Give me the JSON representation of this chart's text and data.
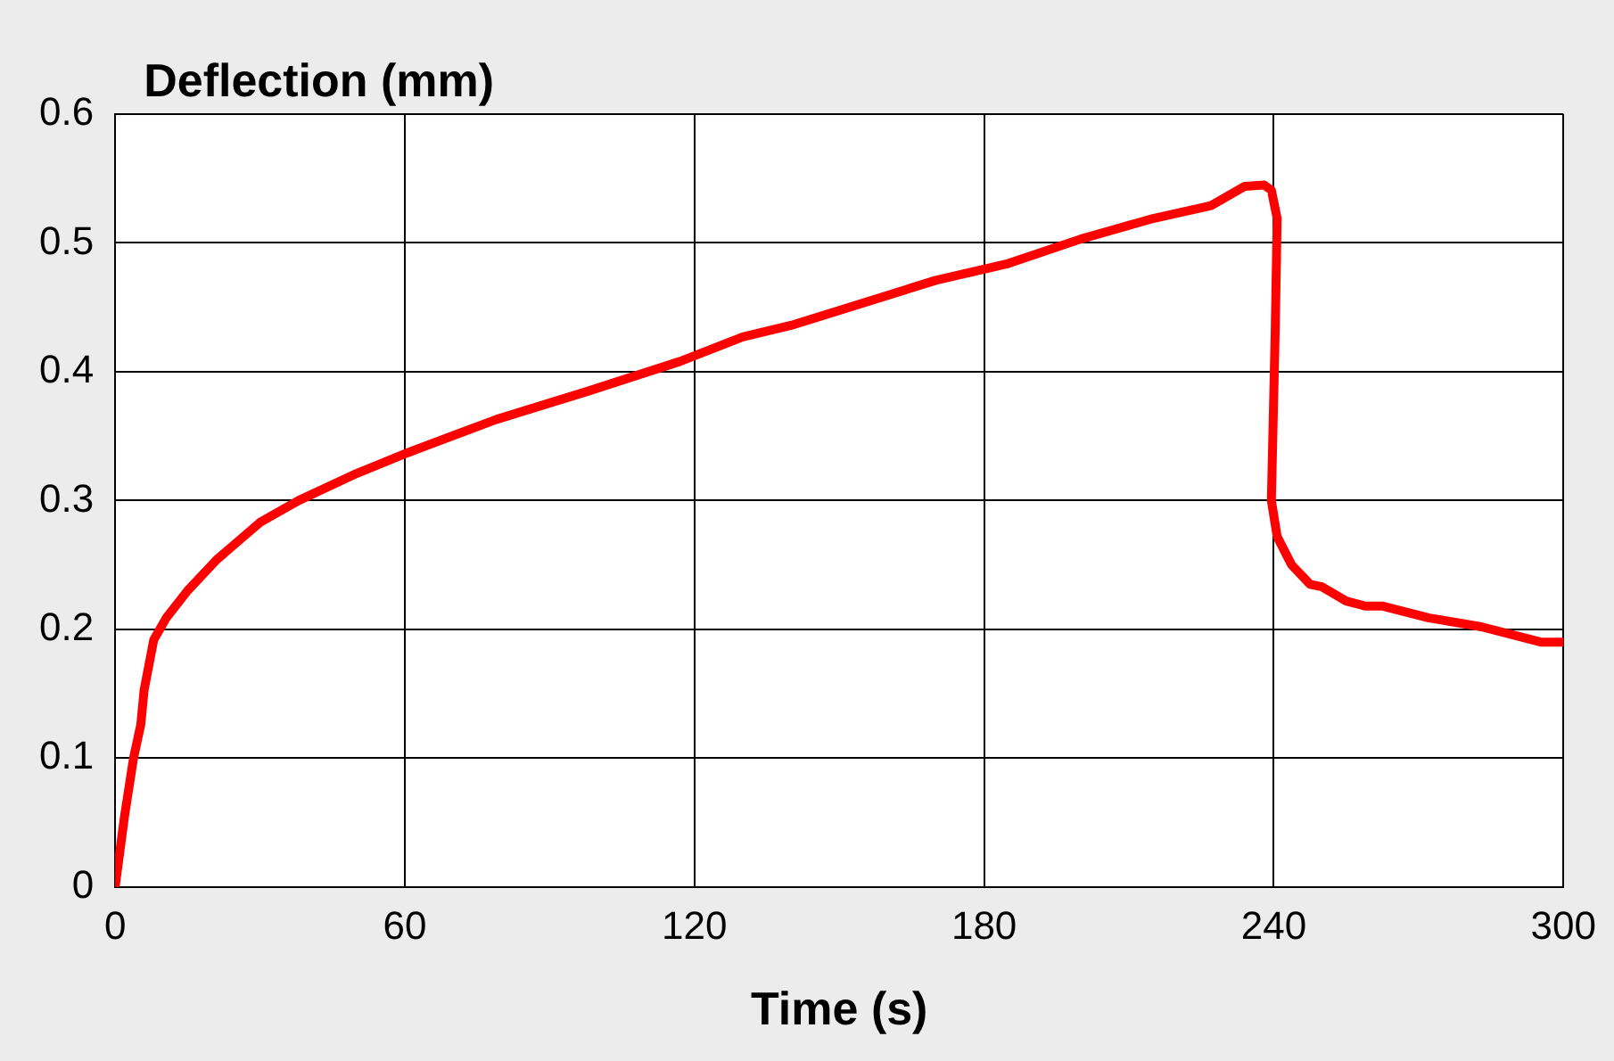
{
  "chart_data": {
    "type": "line",
    "xlabel": "Time (s)",
    "ylabel": "Deflection (mm)",
    "xlim": [
      0,
      300
    ],
    "xticks": [
      0,
      60,
      120,
      180,
      240,
      300
    ],
    "ylim": [
      0,
      0.6
    ],
    "yticks": [
      0,
      0.1,
      0.2,
      0.3,
      0.4,
      0.5,
      0.6
    ],
    "grid": true,
    "legend": false,
    "marker": "none",
    "line_style": "solid",
    "series": [
      {
        "color": "#ff0000",
        "x": [
          0,
          1.9,
          3.8,
          5.3,
          6,
          8,
          10.6,
          15,
          21,
          30,
          38,
          50,
          60.5,
          79,
          98,
          117,
          130,
          140,
          170,
          185,
          200,
          215,
          227,
          234,
          238,
          239.5,
          240.7,
          240.3,
          239.5,
          240.7,
          243.7,
          247.5,
          250,
          255,
          259,
          262.6,
          272,
          283,
          295.5,
          300
        ],
        "values": [
          0,
          0.054,
          0.1,
          0.126,
          0.153,
          0.192,
          0.209,
          0.23,
          0.254,
          0.283,
          0.3,
          0.321,
          0.337,
          0.363,
          0.385,
          0.408,
          0.427,
          0.436,
          0.471,
          0.484,
          0.503,
          0.519,
          0.529,
          0.544,
          0.545,
          0.541,
          0.519,
          0.432,
          0.3,
          0.272,
          0.25,
          0.235,
          0.233,
          0.222,
          0.218,
          0.218,
          0.209,
          0.202,
          0.19,
          0.19
        ]
      }
    ]
  }
}
